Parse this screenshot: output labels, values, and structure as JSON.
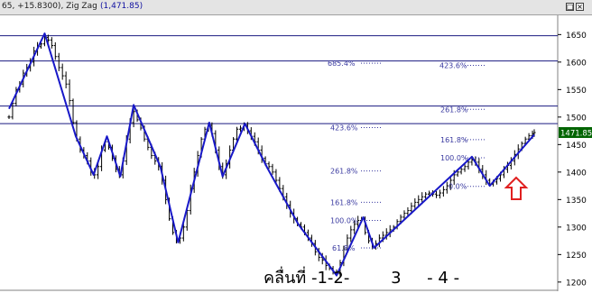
{
  "window": {
    "title_prefix": "65, +15.8300), Zig Zag",
    "title_value": "(1,471.85)",
    "restore_glyph": "□",
    "close_glyph": "×"
  },
  "chart_data": {
    "type": "line",
    "title": "",
    "xlabel": "",
    "ylabel": "",
    "ylim": [
      1185,
      1685
    ],
    "y_ticks": [
      1200,
      1250,
      1300,
      1350,
      1400,
      1450,
      1500,
      1550,
      1600,
      1650
    ],
    "y_tick_labels": [
      "1200",
      "1250",
      "1300",
      "1350",
      "1400",
      "1450",
      "1500",
      "1550",
      "1600",
      "1650"
    ],
    "last_price": 1471.85,
    "last_price_label": "1471.850",
    "grid": false,
    "horizontal_levels": [
      1648,
      1602,
      1520,
      1488
    ],
    "series": [
      {
        "name": "",
        "kind": "zigzag",
        "points": [
          [
            0,
            1515
          ],
          [
            40,
            1652
          ],
          [
            75,
            1465
          ],
          [
            95,
            1395
          ],
          [
            110,
            1465
          ],
          [
            125,
            1392
          ],
          [
            140,
            1522
          ],
          [
            170,
            1410
          ],
          [
            190,
            1272
          ],
          [
            225,
            1490
          ],
          [
            240,
            1392
          ],
          [
            265,
            1488
          ],
          [
            290,
            1408
          ],
          [
            325,
            1305
          ],
          [
            368,
            1212
          ],
          [
            398,
            1318
          ],
          [
            410,
            1262
          ],
          [
            520,
            1428
          ],
          [
            540,
            1375
          ],
          [
            590,
            1468
          ]
        ]
      },
      {
        "name": "",
        "kind": "price-bars",
        "points": [
          [
            0,
            1500
          ],
          [
            4,
            1525
          ],
          [
            8,
            1550
          ],
          [
            12,
            1560
          ],
          [
            16,
            1580
          ],
          [
            20,
            1590
          ],
          [
            24,
            1600
          ],
          [
            28,
            1620
          ],
          [
            32,
            1628
          ],
          [
            36,
            1633
          ],
          [
            40,
            1645
          ],
          [
            44,
            1640
          ],
          [
            48,
            1630
          ],
          [
            52,
            1610
          ],
          [
            56,
            1590
          ],
          [
            60,
            1575
          ],
          [
            64,
            1560
          ],
          [
            68,
            1530
          ],
          [
            72,
            1490
          ],
          [
            76,
            1460
          ],
          [
            80,
            1440
          ],
          [
            84,
            1430
          ],
          [
            88,
            1420
          ],
          [
            92,
            1400
          ],
          [
            96,
            1395
          ],
          [
            100,
            1410
          ],
          [
            104,
            1440
          ],
          [
            108,
            1455
          ],
          [
            112,
            1445
          ],
          [
            116,
            1425
          ],
          [
            120,
            1405
          ],
          [
            124,
            1395
          ],
          [
            128,
            1420
          ],
          [
            132,
            1460
          ],
          [
            136,
            1490
          ],
          [
            140,
            1510
          ],
          [
            144,
            1495
          ],
          [
            148,
            1480
          ],
          [
            152,
            1460
          ],
          [
            156,
            1445
          ],
          [
            160,
            1430
          ],
          [
            164,
            1420
          ],
          [
            168,
            1410
          ],
          [
            172,
            1385
          ],
          [
            176,
            1350
          ],
          [
            180,
            1315
          ],
          [
            184,
            1290
          ],
          [
            188,
            1275
          ],
          [
            192,
            1280
          ],
          [
            196,
            1300
          ],
          [
            200,
            1330
          ],
          [
            204,
            1370
          ],
          [
            208,
            1400
          ],
          [
            212,
            1430
          ],
          [
            216,
            1460
          ],
          [
            220,
            1478
          ],
          [
            224,
            1485
          ],
          [
            228,
            1470
          ],
          [
            232,
            1440
          ],
          [
            236,
            1410
          ],
          [
            240,
            1395
          ],
          [
            244,
            1415
          ],
          [
            248,
            1440
          ],
          [
            252,
            1460
          ],
          [
            256,
            1478
          ],
          [
            260,
            1480
          ],
          [
            264,
            1485
          ],
          [
            268,
            1475
          ],
          [
            272,
            1465
          ],
          [
            276,
            1455
          ],
          [
            280,
            1440
          ],
          [
            284,
            1425
          ],
          [
            288,
            1415
          ],
          [
            292,
            1410
          ],
          [
            296,
            1400
          ],
          [
            300,
            1385
          ],
          [
            304,
            1370
          ],
          [
            308,
            1355
          ],
          [
            312,
            1340
          ],
          [
            316,
            1325
          ],
          [
            320,
            1315
          ],
          [
            324,
            1305
          ],
          [
            328,
            1300
          ],
          [
            332,
            1290
          ],
          [
            336,
            1280
          ],
          [
            340,
            1270
          ],
          [
            344,
            1255
          ],
          [
            348,
            1245
          ],
          [
            352,
            1240
          ],
          [
            356,
            1230
          ],
          [
            360,
            1225
          ],
          [
            364,
            1218
          ],
          [
            368,
            1215
          ],
          [
            372,
            1235
          ],
          [
            376,
            1260
          ],
          [
            380,
            1280
          ],
          [
            384,
            1295
          ],
          [
            388,
            1305
          ],
          [
            392,
            1312
          ],
          [
            396,
            1315
          ],
          [
            400,
            1290
          ],
          [
            404,
            1275
          ],
          [
            408,
            1265
          ],
          [
            412,
            1270
          ],
          [
            416,
            1280
          ],
          [
            420,
            1285
          ],
          [
            424,
            1290
          ],
          [
            428,
            1295
          ],
          [
            432,
            1300
          ],
          [
            436,
            1310
          ],
          [
            440,
            1318
          ],
          [
            444,
            1325
          ],
          [
            448,
            1330
          ],
          [
            452,
            1338
          ],
          [
            456,
            1345
          ],
          [
            460,
            1350
          ],
          [
            464,
            1355
          ],
          [
            468,
            1360
          ],
          [
            472,
            1362
          ],
          [
            476,
            1360
          ],
          [
            480,
            1358
          ],
          [
            484,
            1362
          ],
          [
            488,
            1368
          ],
          [
            492,
            1375
          ],
          [
            496,
            1385
          ],
          [
            500,
            1395
          ],
          [
            504,
            1400
          ],
          [
            508,
            1405
          ],
          [
            512,
            1410
          ],
          [
            516,
            1418
          ],
          [
            520,
            1422
          ],
          [
            524,
            1418
          ],
          [
            528,
            1405
          ],
          [
            532,
            1395
          ],
          [
            536,
            1385
          ],
          [
            540,
            1378
          ],
          [
            544,
            1382
          ],
          [
            548,
            1388
          ],
          [
            552,
            1395
          ],
          [
            556,
            1405
          ],
          [
            560,
            1412
          ],
          [
            564,
            1420
          ],
          [
            568,
            1432
          ],
          [
            572,
            1442
          ],
          [
            576,
            1452
          ],
          [
            580,
            1460
          ],
          [
            584,
            1466
          ],
          [
            588,
            1470
          ],
          [
            590,
            1471.85
          ]
        ]
      }
    ],
    "fib_levels": [
      {
        "label": "685.4%",
        "price": 1598
      },
      {
        "label": "423.6%",
        "price": 1594
      },
      {
        "label": "423.6%",
        "price": 1481
      },
      {
        "label": "261.8%",
        "price": 1514
      },
      {
        "label": "161.8%",
        "price": 1459
      },
      {
        "label": "100.0%",
        "price": 1426
      },
      {
        "label": "0.0%",
        "price": 1374
      },
      {
        "label": "261.8%",
        "price": 1402
      },
      {
        "label": "161.8%",
        "price": 1345
      },
      {
        "label": "100.0%",
        "price": 1312
      },
      {
        "label": "61.8%",
        "price": 1262
      }
    ],
    "annotations": {
      "wave_labels": "คลื่นที่ -1-2-        3     - 4 -"
    }
  }
}
